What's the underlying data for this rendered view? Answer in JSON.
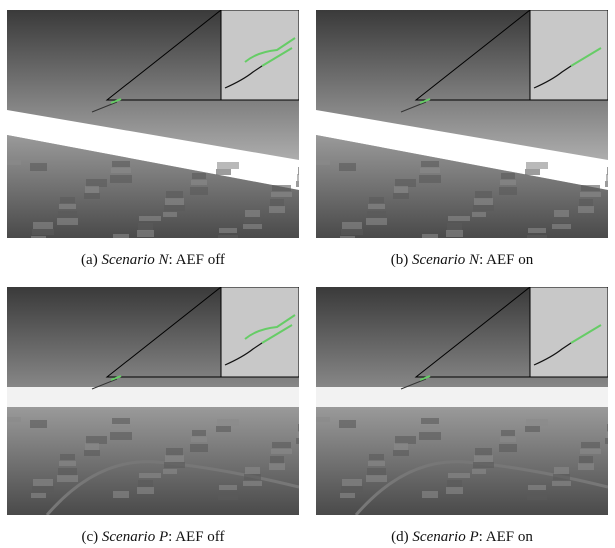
{
  "panels": [
    {
      "label": "(a)",
      "scenario": "Scenario N",
      "caption": ": AEF off"
    },
    {
      "label": "(b)",
      "scenario": "Scenario N",
      "caption": ": AEF on"
    },
    {
      "label": "(c)",
      "scenario": "Scenario P",
      "caption": ": AEF off"
    },
    {
      "label": "(d)",
      "scenario": "Scenario P",
      "caption": ": AEF on"
    }
  ]
}
